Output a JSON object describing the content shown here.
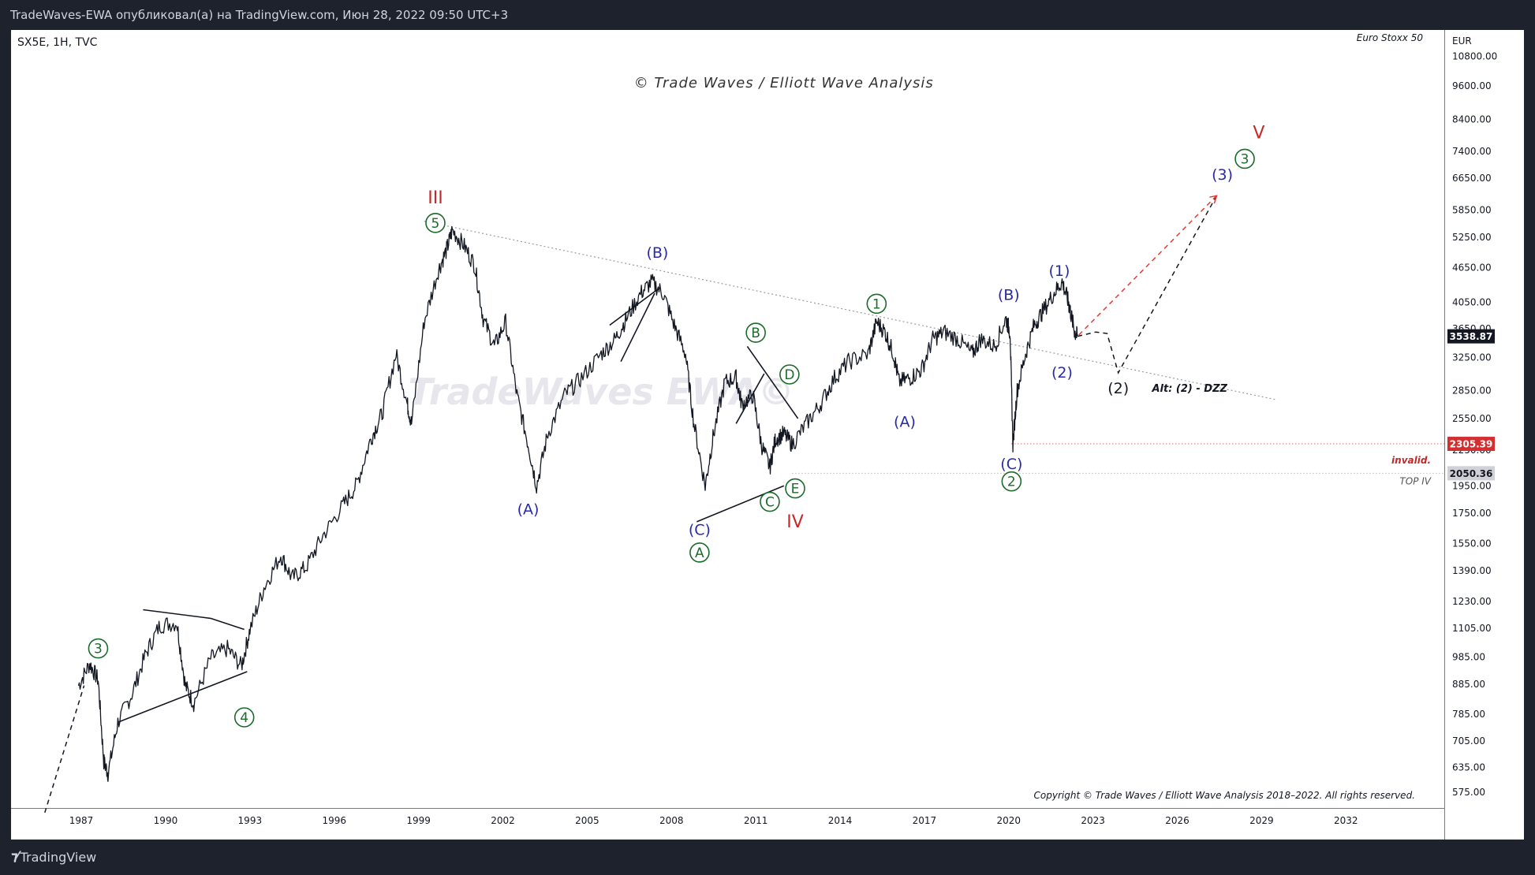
{
  "header": {
    "publish_line": "TradeWaves-EWA опубликовал(а) на TradingView.com, Июн 28, 2022 09:50 UTC+3"
  },
  "footer": {
    "brand": "TradingView",
    "brand_icon": "tradingview-logo-icon"
  },
  "colors": {
    "background": "#1e222d",
    "chart_bg": "#ffffff",
    "price_line": "#131722",
    "wave_green": "#1b6b2a",
    "wave_blue": "#2a2aa8",
    "wave_red": "#c62828",
    "current_price_bg": "#131722",
    "invalid_bg": "#d32f2f",
    "top_iv_bg": "#cfd1d6"
  },
  "chart_data": {
    "type": "line",
    "symbol_info": "SX5E, 1H, TVC",
    "instrument_name": "Euro Stoxx 50",
    "currency": "EUR",
    "watermark": "© Trade Waves / Elliott Wave Analysis",
    "watermark_faint": "TradeWaves EWA©",
    "copyright": "Copyright © Trade Waves / Elliott Wave Analysis 2018–2022. All rights reserved.",
    "y_scale": "log",
    "ylim": [
      540,
      12000
    ],
    "xlim": [
      1984.5,
      2035.5
    ],
    "x_ticks": [
      "1987",
      "1990",
      "1993",
      "1996",
      "1999",
      "2002",
      "2005",
      "2008",
      "2011",
      "2014",
      "2017",
      "2020",
      "2023",
      "2026",
      "2029",
      "2032"
    ],
    "x_tick_values": [
      1987,
      1990,
      1993,
      1996,
      1999,
      2002,
      2005,
      2008,
      2011,
      2014,
      2017,
      2020,
      2023,
      2026,
      2029,
      2032
    ],
    "y_ticks": [
      "10800.00",
      "9600.00",
      "8400.00",
      "7400.00",
      "6650.00",
      "5850.00",
      "5250.00",
      "4650.00",
      "4050.00",
      "3650.00",
      "3250.00",
      "2850.00",
      "2550.00",
      "2250.00",
      "1950.00",
      "1750.00",
      "1550.00",
      "1390.00",
      "1230.00",
      "1105.00",
      "985.00",
      "885.00",
      "785.00",
      "705.00",
      "635.00",
      "575.00"
    ],
    "y_tick_values": [
      10800,
      9600,
      8400,
      7400,
      6650,
      5850,
      5250,
      4650,
      4050,
      3650,
      3250,
      2850,
      2550,
      2250,
      1950,
      1750,
      1550,
      1390,
      1230,
      1105,
      985,
      885,
      785,
      705,
      635,
      575
    ],
    "series": [
      {
        "x": [
          1986.9,
          1987.3,
          1987.6,
          1987.8,
          1987.95,
          1988.3,
          1988.8,
          1989.3,
          1989.8,
          1990.4,
          1990.7,
          1991.0,
          1991.6,
          1992.2,
          1992.7,
          1993.0,
          1993.5,
          1994.1,
          1994.5,
          1995.0,
          1995.6,
          1996.3,
          1996.8,
          1997.3,
          1997.7,
          1998.2,
          1998.6,
          1998.75,
          1999.2,
          1999.7,
          2000.0,
          2000.2,
          2000.6,
          2001.0,
          2001.3,
          2001.7,
          2002.1,
          2002.5,
          2002.9,
          2003.2,
          2003.6,
          2004.2,
          2004.8,
          2005.5,
          2006.0,
          2006.4,
          2006.9,
          2007.3,
          2007.7,
          2008.1,
          2008.5,
          2008.8,
          2009.2,
          2009.5,
          2009.9,
          2010.3,
          2010.5,
          2010.9,
          2011.2,
          2011.5,
          2011.7,
          2012.0,
          2012.3,
          2012.8,
          2013.3,
          2013.8,
          2014.3,
          2015.0,
          2015.3,
          2015.6,
          2015.9,
          2016.1,
          2016.5,
          2016.9,
          2017.3,
          2017.7,
          2018.2,
          2018.7,
          2019.0,
          2019.5,
          2019.9,
          2020.05,
          2020.15,
          2020.3,
          2020.6,
          2020.9,
          2021.2,
          2021.6,
          2021.9,
          2022.1,
          2022.2,
          2022.35,
          2022.45
        ],
        "y": [
          880,
          960,
          900,
          650,
          620,
          760,
          850,
          1000,
          1120,
          1130,
          880,
          820,
          980,
          1020,
          950,
          1100,
          1300,
          1480,
          1350,
          1410,
          1600,
          1800,
          1960,
          2350,
          2600,
          3300,
          2700,
          2500,
          3750,
          4600,
          5000,
          5400,
          5100,
          4700,
          3800,
          3400,
          3750,
          2800,
          2300,
          1950,
          2400,
          2800,
          3000,
          3300,
          3500,
          3800,
          4200,
          4400,
          4200,
          3700,
          3300,
          2500,
          1950,
          2400,
          2950,
          3000,
          2700,
          2800,
          2300,
          2100,
          2350,
          2400,
          2300,
          2500,
          2700,
          3000,
          3200,
          3300,
          3750,
          3600,
          3300,
          2950,
          3000,
          3100,
          3500,
          3600,
          3500,
          3300,
          3500,
          3400,
          3800,
          3600,
          2300,
          2850,
          3300,
          3700,
          3900,
          4200,
          4400,
          4100,
          3900,
          3600,
          3539
        ]
      }
    ],
    "price_labels": [
      {
        "label": "3538.87",
        "value": 3538.87,
        "kind": "current"
      },
      {
        "label": "2305.39",
        "value": 2305.39,
        "kind": "invalid"
      },
      {
        "label": "2050.36",
        "value": 2050.36,
        "kind": "top-iv"
      }
    ],
    "level_captions": [
      {
        "text": "invalid.",
        "value": 2160
      },
      {
        "text": "TOP IV",
        "value": 1985
      }
    ],
    "wave_labels": [
      {
        "text": "III",
        "x": 1999.6,
        "y": 6150,
        "color": "red"
      },
      {
        "text": "5",
        "x": 1999.6,
        "y": 5560,
        "color": "green",
        "circled": true
      },
      {
        "text": "(B)",
        "x": 2007.5,
        "y": 4950,
        "color": "blue"
      },
      {
        "text": "(A)",
        "x": 2002.9,
        "y": 1780,
        "color": "blue"
      },
      {
        "text": "(C)",
        "x": 2009.0,
        "y": 1640,
        "color": "blue"
      },
      {
        "text": "A",
        "x": 2009.0,
        "y": 1495,
        "color": "green",
        "circled": true
      },
      {
        "text": "B",
        "x": 2011.0,
        "y": 3590,
        "color": "green",
        "circled": true
      },
      {
        "text": "D",
        "x": 2012.2,
        "y": 3040,
        "color": "green",
        "circled": true
      },
      {
        "text": "C",
        "x": 2011.5,
        "y": 1830,
        "color": "green",
        "circled": true
      },
      {
        "text": "E",
        "x": 2012.4,
        "y": 1930,
        "color": "green",
        "circled": true
      },
      {
        "text": "IV",
        "x": 2012.4,
        "y": 1690,
        "color": "red"
      },
      {
        "text": "1",
        "x": 2015.3,
        "y": 4030,
        "color": "green",
        "circled": true
      },
      {
        "text": "(A)",
        "x": 2016.3,
        "y": 2520,
        "color": "blue"
      },
      {
        "text": "(B)",
        "x": 2020.0,
        "y": 4180,
        "color": "blue"
      },
      {
        "text": "(C)",
        "x": 2020.1,
        "y": 2130,
        "color": "blue"
      },
      {
        "text": "2",
        "x": 2020.1,
        "y": 1985,
        "color": "green",
        "circled": true
      },
      {
        "text": "(1)",
        "x": 2021.8,
        "y": 4600,
        "color": "blue"
      },
      {
        "text": "(2)",
        "x": 2021.9,
        "y": 3070,
        "color": "blue"
      },
      {
        "text": "(2)",
        "x": 2023.9,
        "y": 2880,
        "color": "black"
      },
      {
        "text": "Alt: (2) - DZZ",
        "x": 2025.1,
        "y": 2880,
        "color": "black",
        "italic": true
      },
      {
        "text": "(3)",
        "x": 2027.6,
        "y": 6750,
        "color": "blue"
      },
      {
        "text": "3",
        "x": 2028.4,
        "y": 7180,
        "color": "green",
        "circled": true
      },
      {
        "text": "V",
        "x": 2028.9,
        "y": 7960,
        "color": "red"
      },
      {
        "text": "3",
        "x": 1987.6,
        "y": 1020,
        "color": "green",
        "circled": true
      },
      {
        "text": "4",
        "x": 1992.8,
        "y": 775,
        "color": "green",
        "circled": true
      }
    ],
    "trendlines": [
      {
        "x": [
          1999.2,
          2029.5
        ],
        "y": [
          5600,
          2750
        ],
        "style": "dotted"
      },
      {
        "x": [
          1989.2,
          1991.6
        ],
        "y": [
          1190,
          1150
        ],
        "style": "solid"
      },
      {
        "x": [
          1991.6,
          1992.8
        ],
        "y": [
          1150,
          1100
        ],
        "style": "solid"
      },
      {
        "x": [
          1988.3,
          1992.9
        ],
        "y": [
          760,
          930
        ],
        "style": "solid"
      },
      {
        "x": [
          2005.8,
          2007.6
        ],
        "y": [
          3700,
          4300
        ],
        "style": "solid"
      },
      {
        "x": [
          2006.2,
          2007.4
        ],
        "y": [
          3200,
          4200
        ],
        "style": "solid"
      },
      {
        "x": [
          2008.9,
          2012.0
        ],
        "y": [
          1690,
          1950
        ],
        "style": "solid"
      },
      {
        "x": [
          2010.7,
          2012.5
        ],
        "y": [
          3400,
          2550
        ],
        "style": "solid"
      },
      {
        "x": [
          2010.3,
          2011.3
        ],
        "y": [
          2500,
          3050
        ],
        "style": "solid"
      }
    ],
    "projections": [
      {
        "x": [
          1985.7,
          1987.1
        ],
        "y": [
          530,
          880
        ],
        "style": "dashed",
        "color": "black"
      },
      {
        "x": [
          2022.45,
          2023.1,
          2023.5,
          2023.9,
          2027.4
        ],
        "y": [
          3539,
          3600,
          3580,
          3060,
          6200
        ],
        "style": "dashed",
        "color": "black"
      },
      {
        "x": [
          2022.5,
          2027.4
        ],
        "y": [
          3560,
          6200
        ],
        "style": "dashed",
        "color": "red"
      }
    ],
    "levels": [
      {
        "value": 2305.39,
        "from_x": 2020.1,
        "style": "dotted",
        "color": "red"
      },
      {
        "value": 2050.36,
        "from_x": 2012.3,
        "style": "dotted",
        "color": "gray"
      }
    ],
    "grid": false,
    "legend": "none"
  }
}
